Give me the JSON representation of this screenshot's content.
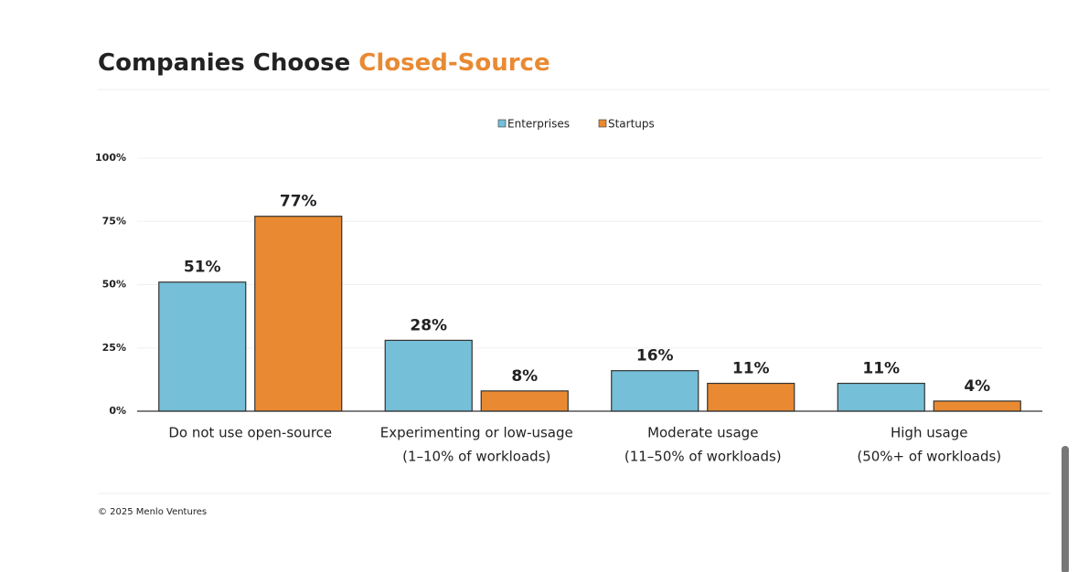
{
  "chart_data": {
    "type": "bar",
    "title": "Companies Choose",
    "title_highlight": "Closed-Source",
    "categories": [
      [
        "Do not use open-source"
      ],
      [
        "Experimenting or low-usage",
        "(1–10% of workloads)"
      ],
      [
        "Moderate usage",
        "(11–50% of workloads)"
      ],
      [
        "High usage",
        "(50%+ of workloads)"
      ]
    ],
    "series": [
      {
        "name": "Enterprises",
        "color": "#76bfd8",
        "values": [
          51,
          28,
          16,
          11
        ],
        "value_labels": [
          "51%",
          "28%",
          "16%",
          "11%"
        ]
      },
      {
        "name": "Startups",
        "color": "#e98a33",
        "values": [
          77,
          8,
          11,
          4
        ],
        "value_labels": [
          "77%",
          "8%",
          "11%",
          "4%"
        ]
      }
    ],
    "ylim": [
      0,
      100
    ],
    "yticks": [
      {
        "value": 0,
        "label": "0%"
      },
      {
        "value": 25,
        "label": "25%"
      },
      {
        "value": 50,
        "label": "50%"
      },
      {
        "value": 75,
        "label": "75%"
      },
      {
        "value": 100,
        "label": "100%"
      }
    ],
    "grid": true,
    "legend": "top",
    "source": "© 2025 Menlo Ventures"
  }
}
